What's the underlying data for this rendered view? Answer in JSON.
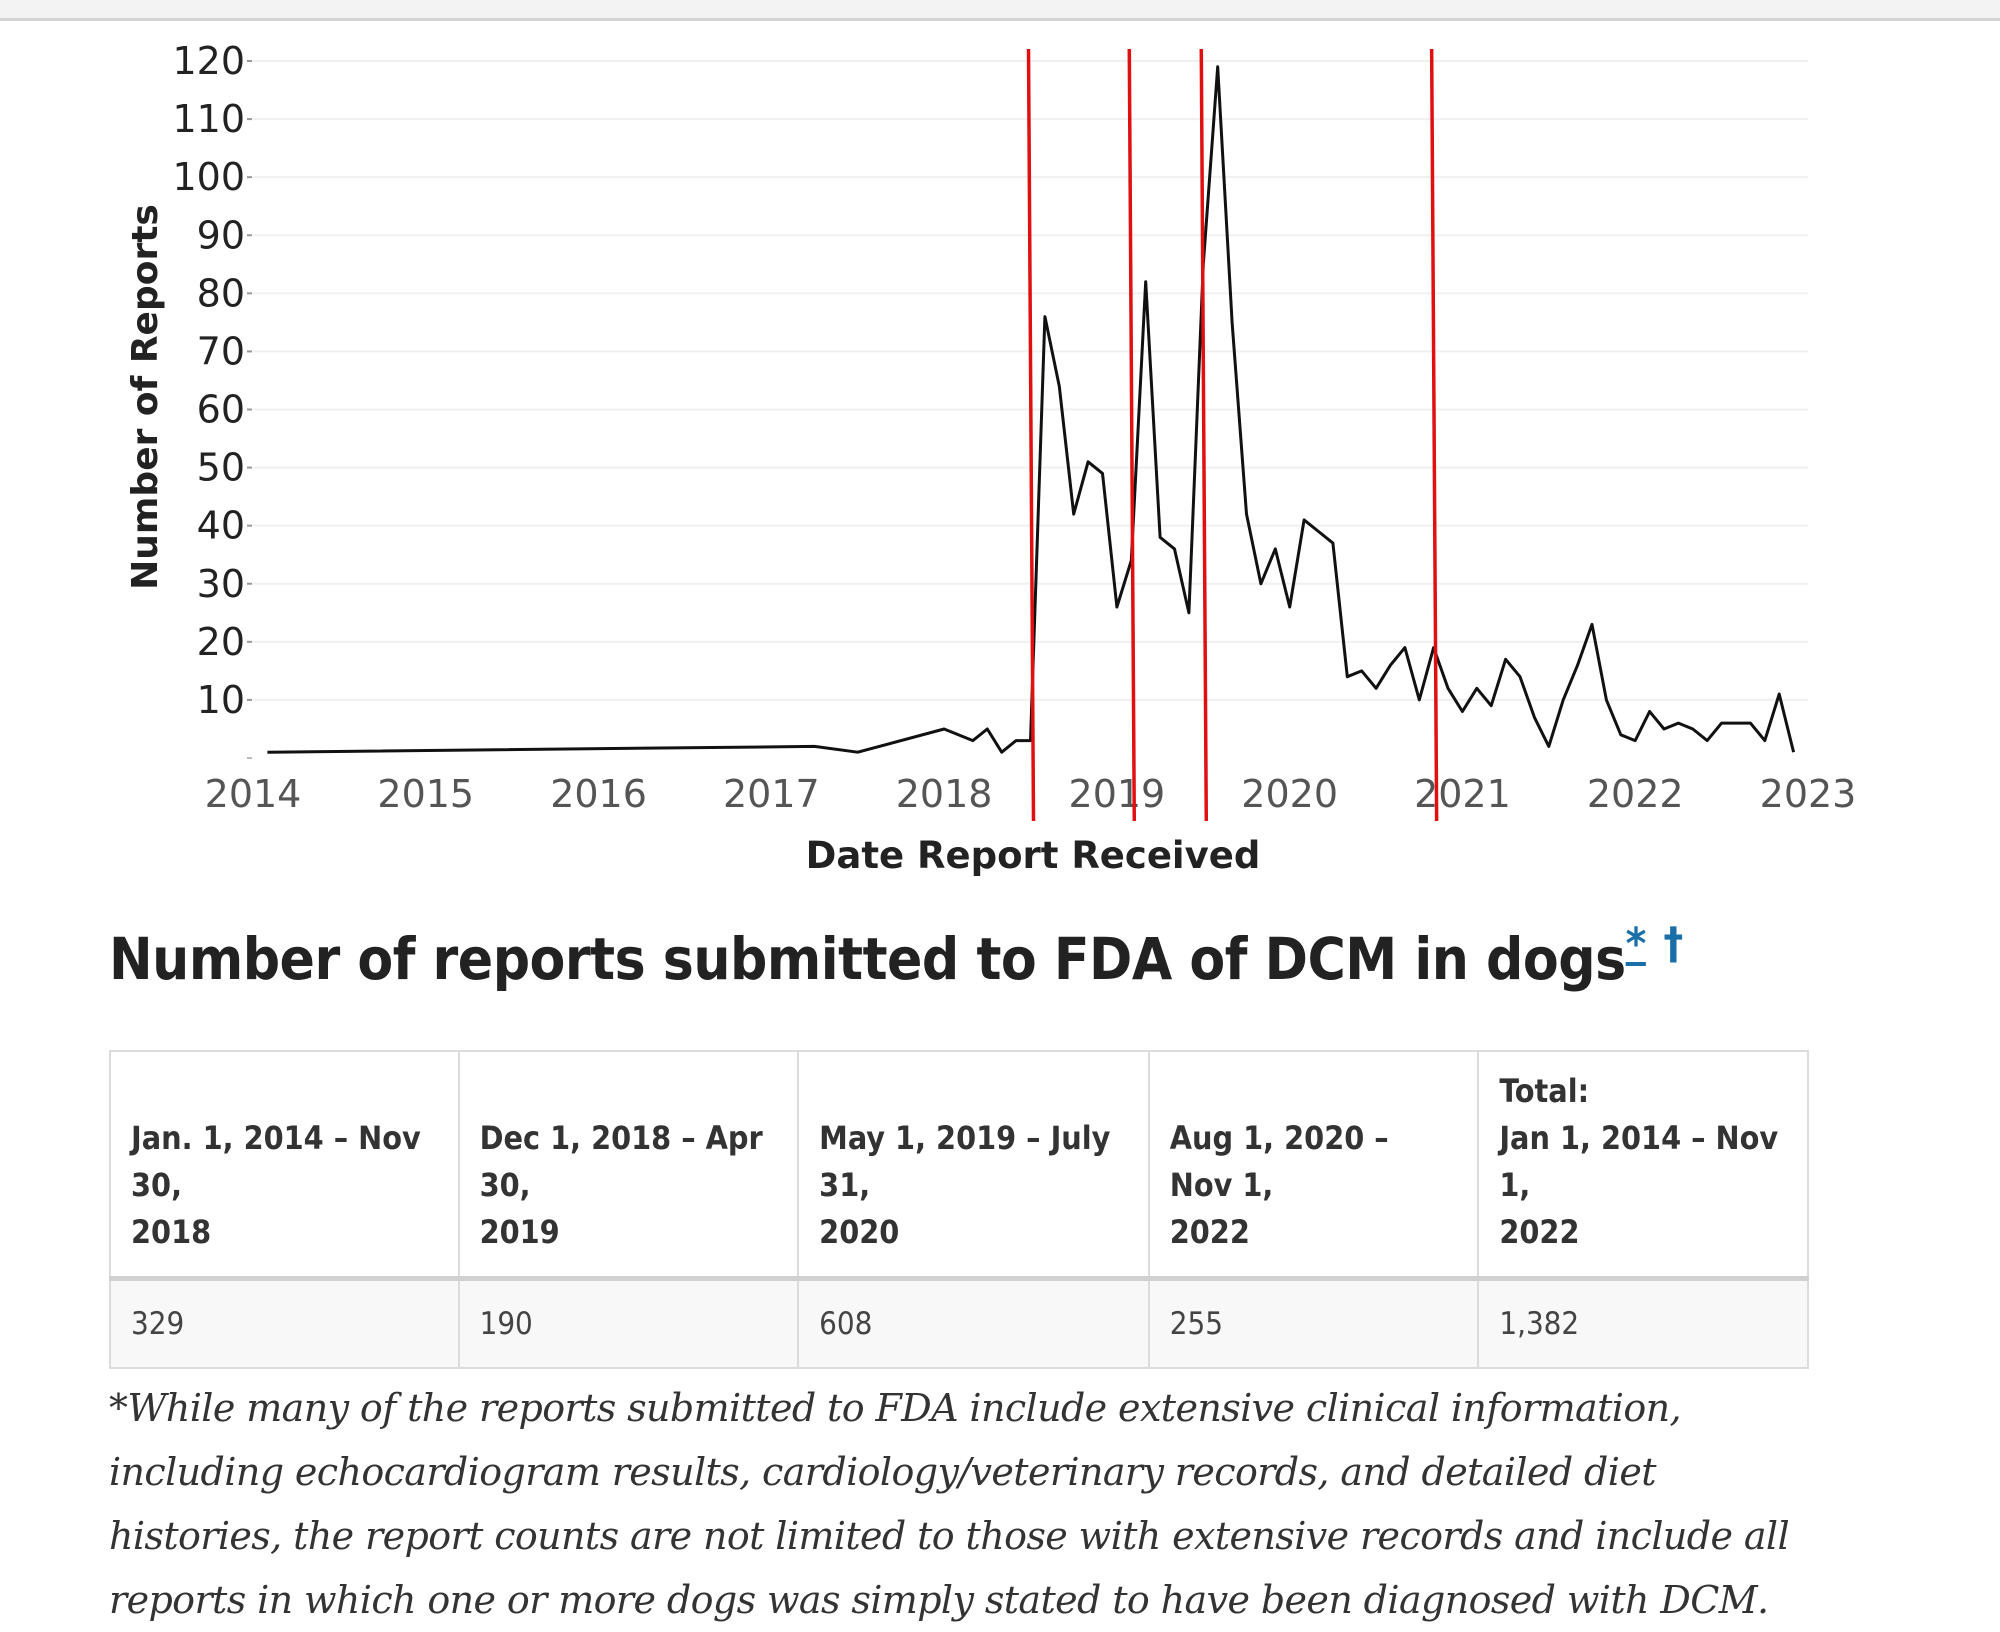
{
  "chart_data": {
    "type": "line",
    "xlabel": "Date Report Received",
    "ylabel": "Number of Reports",
    "x_ticks": [
      "2014",
      "2015",
      "2016",
      "2017",
      "2018",
      "2019",
      "2020",
      "2021",
      "2022",
      "2023"
    ],
    "y_ticks": [
      "10",
      "20",
      "30",
      "40",
      "50",
      "60",
      "70",
      "80",
      "90",
      "100",
      "110",
      "120"
    ],
    "ylim": [
      0,
      120
    ],
    "xlim": [
      "2014-01",
      "2023-01"
    ],
    "grid": true,
    "series": [
      {
        "color": "#111111",
        "points": [
          [
            "2014-02",
            1
          ],
          [
            "2017-04",
            2
          ],
          [
            "2017-07",
            1
          ],
          [
            "2018-01",
            5
          ],
          [
            "2018-03",
            3
          ],
          [
            "2018-04",
            5
          ],
          [
            "2018-05",
            1
          ],
          [
            "2018-06",
            3
          ],
          [
            "2018-07",
            3
          ],
          [
            "2018-08",
            76
          ],
          [
            "2018-09",
            64
          ],
          [
            "2018-10",
            42
          ],
          [
            "2018-11",
            51
          ],
          [
            "2018-12",
            49
          ],
          [
            "2019-01",
            26
          ],
          [
            "2019-02",
            34
          ],
          [
            "2019-03",
            82
          ],
          [
            "2019-04",
            38
          ],
          [
            "2019-05",
            36
          ],
          [
            "2019-06",
            25
          ],
          [
            "2019-07",
            85
          ],
          [
            "2019-08",
            119
          ],
          [
            "2019-09",
            75
          ],
          [
            "2019-10",
            42
          ],
          [
            "2019-11",
            30
          ],
          [
            "2019-12",
            36
          ],
          [
            "2020-01",
            26
          ],
          [
            "2020-02",
            41
          ],
          [
            "2020-03",
            39
          ],
          [
            "2020-04",
            37
          ],
          [
            "2020-05",
            14
          ],
          [
            "2020-06",
            15
          ],
          [
            "2020-07",
            12
          ],
          [
            "2020-08",
            16
          ],
          [
            "2020-09",
            19
          ],
          [
            "2020-10",
            10
          ],
          [
            "2020-11",
            19
          ],
          [
            "2020-12",
            12
          ],
          [
            "2021-01",
            8
          ],
          [
            "2021-02",
            12
          ],
          [
            "2021-03",
            9
          ],
          [
            "2021-04",
            17
          ],
          [
            "2021-05",
            14
          ],
          [
            "2021-06",
            7
          ],
          [
            "2021-07",
            2
          ],
          [
            "2021-08",
            10
          ],
          [
            "2021-09",
            16
          ],
          [
            "2021-10",
            23
          ],
          [
            "2021-11",
            10
          ],
          [
            "2021-12",
            4
          ],
          [
            "2022-01",
            3
          ],
          [
            "2022-02",
            8
          ],
          [
            "2022-03",
            5
          ],
          [
            "2022-04",
            6
          ],
          [
            "2022-05",
            5
          ],
          [
            "2022-06",
            3
          ],
          [
            "2022-07",
            6
          ],
          [
            "2022-08",
            6
          ],
          [
            "2022-09",
            6
          ],
          [
            "2022-10",
            3
          ],
          [
            "2022-11",
            11
          ],
          [
            "2022-12",
            1
          ]
        ]
      }
    ],
    "reference_lines": [
      {
        "x": "2018-07",
        "color": "#e01010"
      },
      {
        "x": "2019-02",
        "color": "#e01010"
      },
      {
        "x": "2019-07",
        "color": "#e01010"
      },
      {
        "x": "2020-11",
        "color": "#e01010"
      }
    ]
  },
  "heading": {
    "text": "Number of reports submitted to FDA of DCM in dogs",
    "footnote_marks": [
      "*",
      "†"
    ]
  },
  "table": {
    "columns": [
      {
        "line1": "Jan. 1, 2014 – Nov 30,",
        "line2": "2018",
        "value": "329"
      },
      {
        "line1": "Dec 1, 2018 – Apr 30,",
        "line2": "2019",
        "value": "190"
      },
      {
        "line1": "May 1, 2019 – July 31,",
        "line2": "2020",
        "value": "608"
      },
      {
        "line1": "Aug 1, 2020 – Nov 1,",
        "line2": "2022",
        "value": "255"
      },
      {
        "line0": "Total:",
        "line1": "Jan 1, 2014 – Nov 1,",
        "line2": "2022",
        "value": "1,382"
      }
    ]
  },
  "footnote": "*While many of the reports submitted to FDA include extensive clinical information, including echocardiogram results, cardiology/veterinary records, and detailed diet histories, the report counts are not limited to those with extensive records and include all reports in which one or more dogs was simply stated to have been diagnosed with DCM."
}
